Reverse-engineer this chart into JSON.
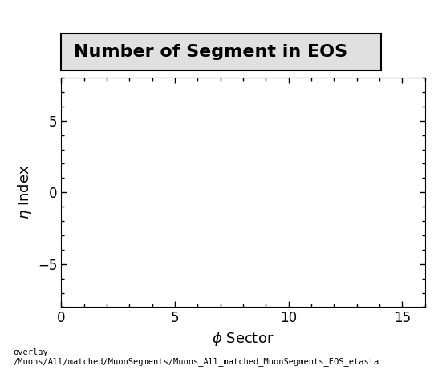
{
  "title": "Number of Segment in EOS",
  "xlabel": "ϕ Sector",
  "ylabel": "η Index",
  "xlim": [
    0,
    16
  ],
  "ylim": [
    -8,
    8
  ],
  "xticks": [
    0,
    5,
    10,
    15
  ],
  "yticks": [
    -5,
    0,
    5
  ],
  "background_color": "#ffffff",
  "plot_bg_color": "#ffffff",
  "title_fontsize": 16,
  "axis_label_fontsize": 13,
  "tick_fontsize": 12,
  "footer_text": "overlay\n/Muons/All/matched/MuonSegments/Muons_All_matched_MuonSegments_EOS_etasta",
  "footer_fontsize": 7.5,
  "title_box_color": "#e0e0e0"
}
